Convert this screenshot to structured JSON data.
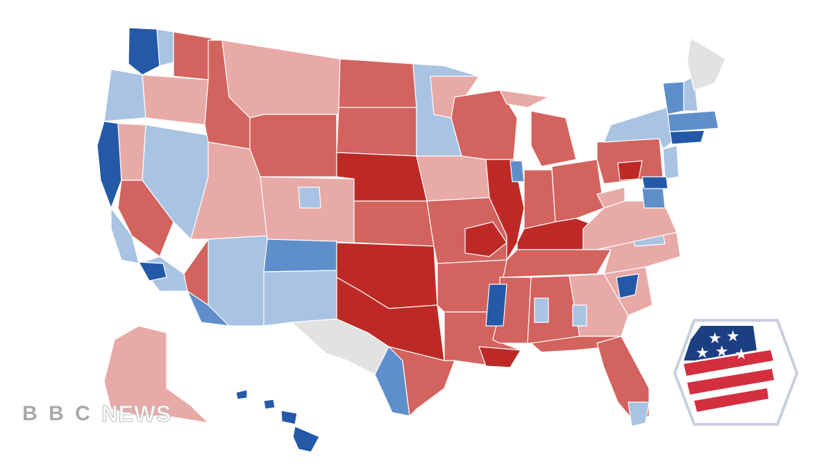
{
  "logo": {
    "blocks": [
      "B",
      "B",
      "C"
    ],
    "word": "NEWS"
  },
  "colors": {
    "strong_rep": "#bd2a26",
    "medium_rep": "#d3635e",
    "light_rep": "#e8aaa7",
    "light_dem": "#a9c3e3",
    "medium_dem": "#5f8fca",
    "strong_dem": "#2359a6",
    "no_data": "#e2e2e2",
    "border": "#ffffff",
    "emblem_blue": "#1c3f84",
    "emblem_red": "#d32f3f",
    "emblem_frame": "#c8cedd"
  },
  "icons": [
    "bbc-news-logo",
    "us-flag-hexagon-icon"
  ]
}
